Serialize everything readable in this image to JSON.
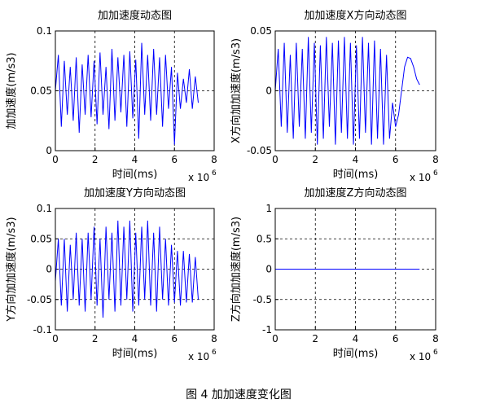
{
  "caption": "图 4  加加速度变化图",
  "chart_data": [
    {
      "type": "line",
      "title": "加加速度动态图",
      "xlabel": "时间(ms)",
      "ylabel": "加加速度(m/s3)",
      "x_scale_label": "x 10",
      "x_scale_exponent": "6",
      "xlim": [
        0,
        8
      ],
      "xticks": [
        0,
        2,
        4,
        6,
        8
      ],
      "ylim": [
        0,
        0.1
      ],
      "yticks": [
        0,
        0.05,
        0.1
      ],
      "grid": true,
      "x": [
        0,
        0.15,
        0.3,
        0.45,
        0.6,
        0.75,
        0.9,
        1.05,
        1.2,
        1.35,
        1.5,
        1.65,
        1.8,
        1.95,
        2.1,
        2.25,
        2.4,
        2.55,
        2.7,
        2.85,
        3,
        3.15,
        3.3,
        3.45,
        3.6,
        3.75,
        3.9,
        4.05,
        4.2,
        4.35,
        4.5,
        4.65,
        4.8,
        4.95,
        5.1,
        5.25,
        5.4,
        5.55,
        5.7,
        5.85,
        6,
        6.15,
        6.3,
        6.45,
        6.6,
        6.75,
        6.9,
        7.05,
        7.2
      ],
      "series": [
        {
          "color": "#0000ff",
          "values": [
            0.05,
            0.08,
            0.02,
            0.075,
            0.03,
            0.07,
            0.025,
            0.078,
            0.015,
            0.072,
            0.03,
            0.08,
            0.028,
            0.075,
            0.022,
            0.082,
            0.03,
            0.07,
            0.018,
            0.085,
            0.025,
            0.078,
            0.032,
            0.08,
            0.02,
            0.083,
            0.027,
            0.076,
            0.01,
            0.09,
            0.03,
            0.08,
            0.025,
            0.085,
            0.03,
            0.078,
            0.02,
            0.08,
            0.035,
            0.07,
            0.005,
            0.065,
            0.035,
            0.06,
            0.04,
            0.068,
            0.035,
            0.062,
            0.04
          ]
        }
      ]
    },
    {
      "type": "line",
      "title": "加加速度X方向动态图",
      "xlabel": "时间(ms)",
      "ylabel": "X方向加加速度(m/s3)",
      "x_scale_label": "x 10",
      "x_scale_exponent": "6",
      "xlim": [
        0,
        8
      ],
      "xticks": [
        0,
        2,
        4,
        6,
        8
      ],
      "ylim": [
        -0.05,
        0.05
      ],
      "yticks": [
        -0.05,
        0,
        0.05
      ],
      "grid": true,
      "x": [
        0,
        0.15,
        0.3,
        0.45,
        0.6,
        0.75,
        0.9,
        1.05,
        1.2,
        1.35,
        1.5,
        1.65,
        1.8,
        1.95,
        2.1,
        2.25,
        2.4,
        2.55,
        2.7,
        2.85,
        3,
        3.15,
        3.3,
        3.45,
        3.6,
        3.75,
        3.9,
        4.05,
        4.2,
        4.35,
        4.5,
        4.65,
        4.8,
        4.95,
        5.1,
        5.25,
        5.4,
        5.55,
        5.7,
        5.85,
        6,
        6.15,
        6.3,
        6.45,
        6.6,
        6.75,
        6.9,
        7.05,
        7.2
      ],
      "series": [
        {
          "color": "#0000ff",
          "values": [
            0.0,
            0.035,
            -0.03,
            0.04,
            -0.035,
            0.03,
            -0.04,
            0.04,
            -0.03,
            0.035,
            -0.04,
            0.045,
            -0.035,
            0.04,
            -0.045,
            0.038,
            -0.04,
            0.045,
            -0.03,
            0.04,
            -0.045,
            0.042,
            -0.035,
            0.045,
            -0.04,
            0.04,
            -0.045,
            0.038,
            -0.04,
            0.045,
            -0.035,
            0.04,
            -0.045,
            0.042,
            -0.04,
            0.035,
            -0.045,
            0.03,
            -0.04,
            -0.01,
            -0.03,
            -0.02,
            0.0,
            0.02,
            0.028,
            0.027,
            0.02,
            0.01,
            0.005
          ]
        }
      ]
    },
    {
      "type": "line",
      "title": "加加速度Y方向动态图",
      "xlabel": "时间(ms)",
      "ylabel": "Y方向加加速度(m/s3)",
      "x_scale_label": "x 10",
      "x_scale_exponent": "6",
      "xlim": [
        0,
        8
      ],
      "xticks": [
        0,
        2,
        4,
        6,
        8
      ],
      "ylim": [
        -0.1,
        0.1
      ],
      "yticks": [
        -0.1,
        -0.05,
        0,
        0.05,
        0.1
      ],
      "grid": true,
      "x": [
        0,
        0.15,
        0.3,
        0.45,
        0.6,
        0.75,
        0.9,
        1.05,
        1.2,
        1.35,
        1.5,
        1.65,
        1.8,
        1.95,
        2.1,
        2.25,
        2.4,
        2.55,
        2.7,
        2.85,
        3,
        3.15,
        3.3,
        3.45,
        3.6,
        3.75,
        3.9,
        4.05,
        4.2,
        4.35,
        4.5,
        4.65,
        4.8,
        4.95,
        5.1,
        5.25,
        5.4,
        5.55,
        5.7,
        5.85,
        6,
        6.15,
        6.3,
        6.45,
        6.6,
        6.75,
        6.9,
        7.05,
        7.2
      ],
      "series": [
        {
          "color": "#0000ff",
          "values": [
            -0.02,
            0.05,
            -0.06,
            0.05,
            -0.07,
            0.04,
            -0.05,
            0.06,
            -0.06,
            0.05,
            -0.07,
            0.06,
            -0.05,
            0.07,
            -0.06,
            0.05,
            -0.08,
            0.07,
            -0.05,
            0.06,
            -0.07,
            0.08,
            -0.06,
            0.07,
            -0.05,
            0.08,
            -0.07,
            0.06,
            -0.06,
            0.07,
            -0.05,
            0.08,
            -0.06,
            0.06,
            -0.07,
            0.07,
            -0.05,
            0.05,
            -0.06,
            0.04,
            -0.055,
            0.03,
            -0.06,
            0.03,
            -0.055,
            0.025,
            -0.055,
            0.02,
            -0.05
          ]
        }
      ]
    },
    {
      "type": "line",
      "title": "加加速度Z方向动态图",
      "xlabel": "时间(ms)",
      "ylabel": "Z方向加加速度(m/s3)",
      "x_scale_label": "x 10",
      "x_scale_exponent": "6",
      "xlim": [
        0,
        8
      ],
      "xticks": [
        0,
        2,
        4,
        6,
        8
      ],
      "ylim": [
        -1,
        1
      ],
      "yticks": [
        -1,
        -0.5,
        0,
        0.5,
        1
      ],
      "grid": true,
      "x": [
        0,
        7.2
      ],
      "series": [
        {
          "color": "#0000ff",
          "values": [
            0,
            0
          ]
        }
      ]
    }
  ]
}
